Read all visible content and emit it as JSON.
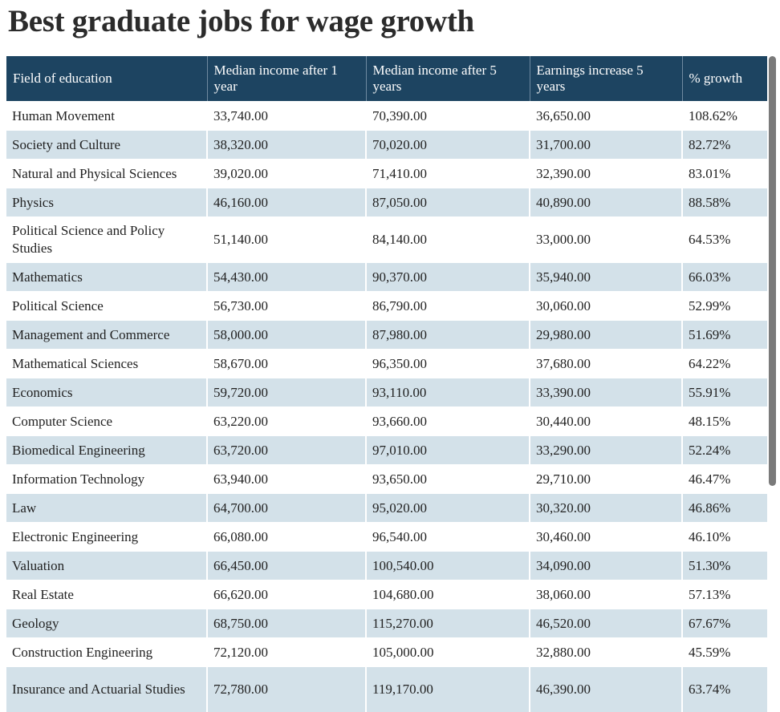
{
  "title": "Best graduate jobs for wage growth",
  "table": {
    "headers": [
      "Field of education",
      "Median income after 1 year",
      "Median income after 5 years",
      "Earnings increase 5 years",
      "% growth"
    ],
    "rows": [
      [
        "Human Movement",
        "33,740.00",
        "70,390.00",
        "36,650.00",
        "108.62%"
      ],
      [
        "Society and Culture",
        "38,320.00",
        "70,020.00",
        "31,700.00",
        "82.72%"
      ],
      [
        "Natural and Physical Sciences",
        "39,020.00",
        "71,410.00",
        "32,390.00",
        "83.01%"
      ],
      [
        "Physics",
        "46,160.00",
        "87,050.00",
        "40,890.00",
        "88.58%"
      ],
      [
        "Political Science and Policy Studies",
        "51,140.00",
        "84,140.00",
        "33,000.00",
        "64.53%"
      ],
      [
        "Mathematics",
        "54,430.00",
        "90,370.00",
        "35,940.00",
        "66.03%"
      ],
      [
        "Political Science",
        "56,730.00",
        "86,790.00",
        "30,060.00",
        "52.99%"
      ],
      [
        "Management and Commerce",
        "58,000.00",
        "87,980.00",
        "29,980.00",
        "51.69%"
      ],
      [
        "Mathematical Sciences",
        "58,670.00",
        "96,350.00",
        "37,680.00",
        "64.22%"
      ],
      [
        "Economics",
        "59,720.00",
        "93,110.00",
        "33,390.00",
        "55.91%"
      ],
      [
        "Computer Science",
        "63,220.00",
        "93,660.00",
        "30,440.00",
        "48.15%"
      ],
      [
        "Biomedical Engineering",
        "63,720.00",
        "97,010.00",
        "33,290.00",
        "52.24%"
      ],
      [
        "Information Technology",
        "63,940.00",
        "93,650.00",
        "29,710.00",
        "46.47%"
      ],
      [
        "Law",
        "64,700.00",
        "95,020.00",
        "30,320.00",
        "46.86%"
      ],
      [
        "Electronic Engineering",
        "66,080.00",
        "96,540.00",
        "30,460.00",
        "46.10%"
      ],
      [
        "Valuation",
        "66,450.00",
        "100,540.00",
        "34,090.00",
        "51.30%"
      ],
      [
        "Real Estate",
        "66,620.00",
        "104,680.00",
        "38,060.00",
        "57.13%"
      ],
      [
        "Geology",
        "68,750.00",
        "115,270.00",
        "46,520.00",
        "67.67%"
      ],
      [
        "Construction Engineering",
        "72,120.00",
        "105,000.00",
        "32,880.00",
        "45.59%"
      ],
      [
        "Insurance and Actuarial Studies",
        "72,780.00",
        "119,170.00",
        "46,390.00",
        "63.74%"
      ]
    ]
  }
}
